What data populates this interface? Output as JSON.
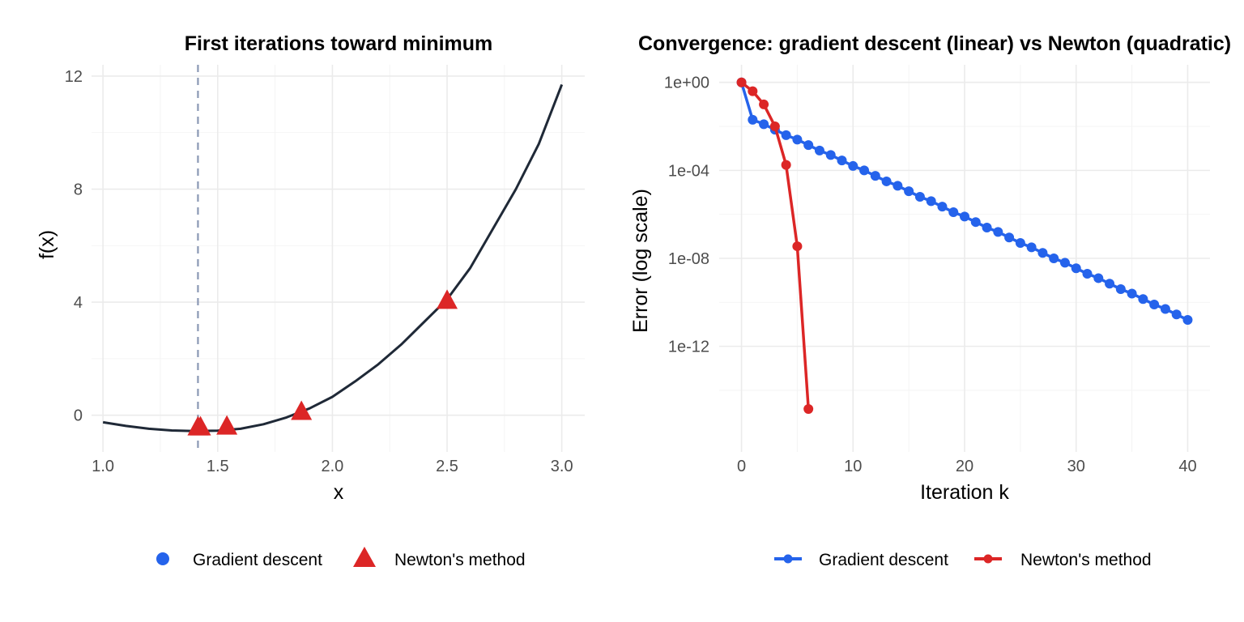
{
  "chart_data": [
    {
      "type": "line",
      "title": "First iterations toward minimum",
      "xlabel": "x",
      "ylabel": "f(x)",
      "xlim": [
        0.95,
        3.1
      ],
      "ylim": [
        -1.3,
        12.4
      ],
      "x_ticks": [
        "1.0",
        "1.5",
        "2.0",
        "2.5",
        "3.0"
      ],
      "x_tick_values": [
        1.0,
        1.5,
        2.0,
        2.5,
        3.0
      ],
      "y_ticks": [
        "0",
        "4",
        "8",
        "12"
      ],
      "y_tick_values": [
        0,
        4,
        8,
        12
      ],
      "grid": true,
      "function_curve": {
        "x": [
          1.0,
          1.1,
          1.2,
          1.3,
          1.4,
          1.414,
          1.5,
          1.6,
          1.7,
          1.8,
          1.9,
          2.0,
          2.1,
          2.2,
          2.3,
          2.4,
          2.5,
          2.6,
          2.7,
          2.8,
          2.9,
          3.0
        ],
        "y": [
          -0.25,
          -0.38,
          -0.48,
          -0.54,
          -0.56,
          -0.56,
          -0.55,
          -0.48,
          -0.32,
          -0.08,
          0.24,
          0.65,
          1.2,
          1.8,
          2.5,
          3.3,
          4.1,
          5.2,
          6.6,
          8.0,
          9.6,
          11.7
        ],
        "color": "#1f2937"
      },
      "reference_line": {
        "x": 1.414,
        "color": "#8a98b4"
      },
      "series": [
        {
          "name": "Gradient descent",
          "x": [],
          "y": [],
          "color": "#2563eb",
          "marker": "circle"
        },
        {
          "name": "Newton's method",
          "x": [
            2.5,
            1.865,
            1.54,
            1.425,
            1.414
          ],
          "y": [
            4.05,
            0.12,
            -0.4,
            -0.43,
            -0.43
          ],
          "color": "#dc2626",
          "marker": "triangle"
        }
      ],
      "legend": "bottom"
    },
    {
      "type": "line",
      "title": "Convergence: gradient descent (linear) vs Newton (quadratic)",
      "xlabel": "Iteration k",
      "ylabel": "Error (log scale)",
      "y_scale": "log",
      "xlim": [
        -2,
        42
      ],
      "ylim_log10": [
        -16.8,
        0.8
      ],
      "x_ticks": [
        "0",
        "10",
        "20",
        "30",
        "40"
      ],
      "x_tick_values": [
        0,
        10,
        20,
        30,
        40
      ],
      "y_ticks": [
        "1e+00",
        "1e-04",
        "1e-08",
        "1e-12"
      ],
      "y_tick_log10": [
        0,
        -4,
        -8,
        -12
      ],
      "grid": true,
      "series": [
        {
          "name": "Gradient descent",
          "color": "#2563eb",
          "x": [
            0,
            1,
            2,
            3,
            4,
            5,
            6,
            7,
            8,
            9,
            10,
            11,
            12,
            13,
            14,
            15,
            16,
            17,
            18,
            19,
            20,
            21,
            22,
            23,
            24,
            25,
            26,
            27,
            28,
            29,
            30,
            31,
            32,
            33,
            34,
            35,
            36,
            37,
            38,
            39,
            40
          ],
          "y_log10": [
            0,
            -1.7,
            -1.9,
            -2.15,
            -2.4,
            -2.6,
            -2.85,
            -3.1,
            -3.3,
            -3.55,
            -3.8,
            -4.0,
            -4.25,
            -4.5,
            -4.7,
            -4.95,
            -5.2,
            -5.4,
            -5.65,
            -5.9,
            -6.1,
            -6.35,
            -6.6,
            -6.8,
            -7.05,
            -7.3,
            -7.5,
            -7.75,
            -8.0,
            -8.2,
            -8.45,
            -8.7,
            -8.9,
            -9.15,
            -9.4,
            -9.6,
            -9.85,
            -10.1,
            -10.3,
            -10.55,
            -10.8
          ]
        },
        {
          "name": "Newton's method",
          "color": "#dc2626",
          "x": [
            0,
            1,
            2,
            3,
            4,
            5,
            6
          ],
          "y_log10": [
            0,
            -0.4,
            -1.0,
            -2.0,
            -3.75,
            -7.45,
            -14.85
          ]
        }
      ],
      "legend": "bottom"
    }
  ]
}
